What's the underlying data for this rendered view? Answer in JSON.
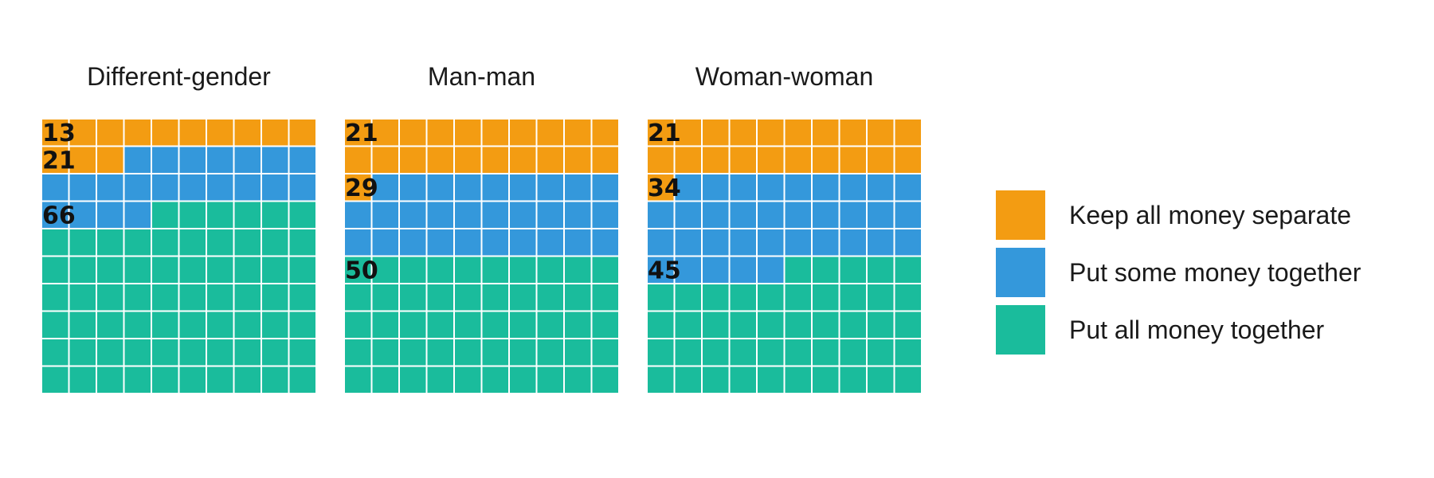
{
  "chart_data": {
    "type": "waffle",
    "grid": "10x10",
    "unit": "percent",
    "categories": [
      "Keep all money separate",
      "Put some money together",
      "Put all money together"
    ],
    "colors": {
      "Keep all money separate": "#f39c12",
      "Put some money together": "#3498db",
      "Put all money together": "#1abc9c"
    },
    "panels": [
      {
        "title": "Different-gender",
        "values": [
          13,
          21,
          66
        ]
      },
      {
        "title": "Man-man",
        "values": [
          21,
          29,
          50
        ]
      },
      {
        "title": "Woman-woman",
        "values": [
          21,
          34,
          45
        ]
      }
    ],
    "legend": {
      "position": "right",
      "items": [
        "Keep all money separate",
        "Put some money together",
        "Put all money together"
      ]
    }
  }
}
